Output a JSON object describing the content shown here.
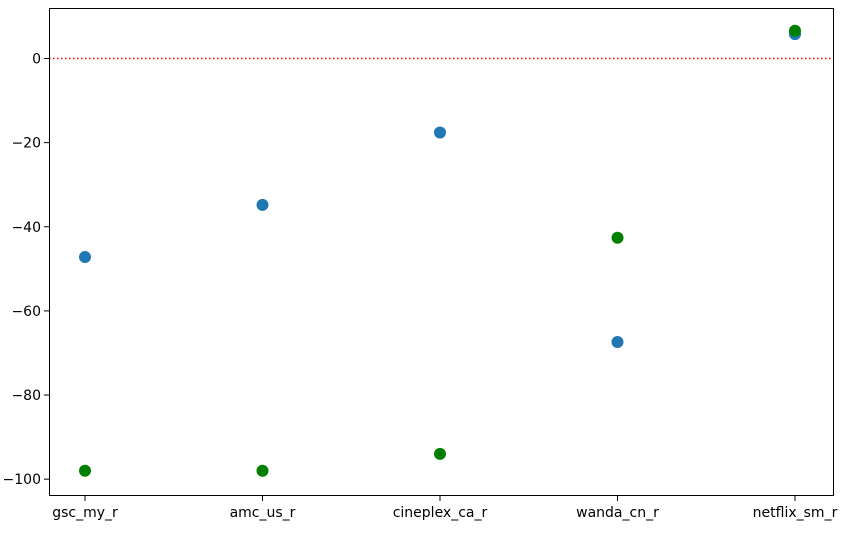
{
  "chart_data": {
    "type": "scatter",
    "title": "",
    "xlabel": "",
    "ylabel": "",
    "categories": [
      "gsc_my_r",
      "amc_us_r",
      "cineplex_ca_r",
      "wanda_cn_r",
      "netflix_sm_r"
    ],
    "ylim": [
      -104,
      12
    ],
    "yticks": [
      0,
      -20,
      -40,
      -60,
      -80,
      -100
    ],
    "ytick_labels": [
      "0",
      "−20",
      "−40",
      "−60",
      "−80",
      "−100"
    ],
    "grid": false,
    "legend": "none",
    "series": [
      {
        "color": "#1f77b4",
        "values": [
          -47.2,
          -34.8,
          -17.6,
          -67.4,
          5.8
        ]
      },
      {
        "color": "#008000",
        "values": [
          -98.0,
          -98.0,
          -94.0,
          -42.6,
          6.6
        ]
      }
    ],
    "reference_line": {
      "y": 0,
      "color": "#ff0000",
      "style": "dotted"
    }
  }
}
